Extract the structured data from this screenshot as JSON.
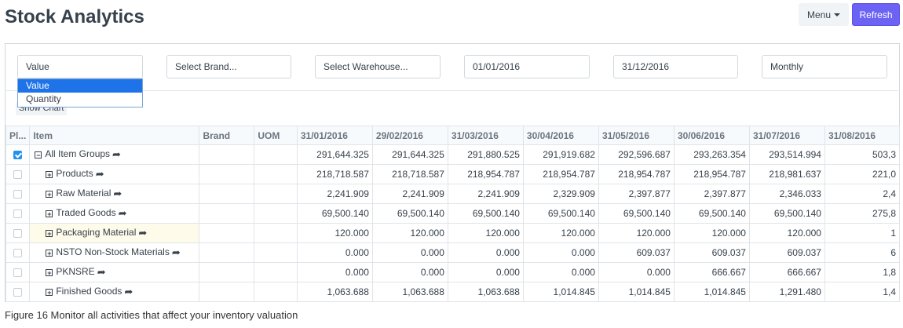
{
  "header": {
    "title": "Stock Analytics",
    "menu_label": "Menu",
    "refresh_label": "Refresh"
  },
  "filters": {
    "value_type": "Value",
    "brand_placeholder": "Select Brand...",
    "warehouse_placeholder": "Select Warehouse...",
    "from_date": "01/01/2016",
    "to_date": "31/12/2016",
    "range": "Monthly",
    "dropdown_options": [
      "Value",
      "Quantity"
    ],
    "show_chart": "Show Chart"
  },
  "grid": {
    "columns": [
      "Pl...",
      "Item",
      "Brand",
      "UOM",
      "31/01/2016",
      "29/02/2016",
      "31/03/2016",
      "30/04/2016",
      "31/05/2016",
      "30/06/2016",
      "31/07/2016",
      "31/08/2016"
    ],
    "rows": [
      {
        "checked": true,
        "level": 0,
        "toggle": "⊟",
        "item": "All Item Groups",
        "values": [
          "291,644.325",
          "291,644.325",
          "291,880.525",
          "291,919.682",
          "292,596.687",
          "293,263.354",
          "293,514.994",
          "503,3"
        ]
      },
      {
        "checked": false,
        "level": 1,
        "toggle": "⊞",
        "item": "Products",
        "values": [
          "218,718.587",
          "218,718.587",
          "218,954.787",
          "218,954.787",
          "218,954.787",
          "218,954.787",
          "218,981.637",
          "221,0"
        ]
      },
      {
        "checked": false,
        "level": 1,
        "toggle": "⊞",
        "item": "Raw Material",
        "values": [
          "2,241.909",
          "2,241.909",
          "2,241.909",
          "2,329.909",
          "2,397.877",
          "2,397.877",
          "2,346.033",
          "2,4"
        ]
      },
      {
        "checked": false,
        "level": 1,
        "toggle": "⊞",
        "item": "Traded Goods",
        "values": [
          "69,500.140",
          "69,500.140",
          "69,500.140",
          "69,500.140",
          "69,500.140",
          "69,500.140",
          "69,500.140",
          "275,8"
        ]
      },
      {
        "checked": false,
        "level": 1,
        "toggle": "⊞",
        "item": "Packaging Material",
        "highlight": true,
        "values": [
          "120.000",
          "120.000",
          "120.000",
          "120.000",
          "120.000",
          "120.000",
          "120.000",
          "1"
        ]
      },
      {
        "checked": false,
        "level": 1,
        "toggle": "⊞",
        "item": "NSTO Non-Stock Materials",
        "values": [
          "0.000",
          "0.000",
          "0.000",
          "0.000",
          "609.037",
          "609.037",
          "609.037",
          "6"
        ]
      },
      {
        "checked": false,
        "level": 1,
        "toggle": "⊞",
        "item": "PKNSRE",
        "values": [
          "0.000",
          "0.000",
          "0.000",
          "0.000",
          "0.000",
          "666.667",
          "666.667",
          "1,8"
        ]
      },
      {
        "checked": false,
        "level": 1,
        "toggle": "⊞",
        "item": "Finished Goods",
        "values": [
          "1,063.688",
          "1,063.688",
          "1,063.688",
          "1,014.845",
          "1,014.845",
          "1,014.845",
          "1,291.480",
          "1,4"
        ]
      }
    ]
  },
  "caption": "Figure 16 Monitor all activities that affect your inventory valuation",
  "colors": {
    "primary": "#6c63f5",
    "selected_option": "#1e73e8",
    "checkbox": "#2490ef",
    "row_highlight": "#fffbea"
  },
  "icons": {
    "open_link": "share-arrow-icon",
    "expand": "plus-square-icon",
    "collapse": "minus-square-icon"
  }
}
